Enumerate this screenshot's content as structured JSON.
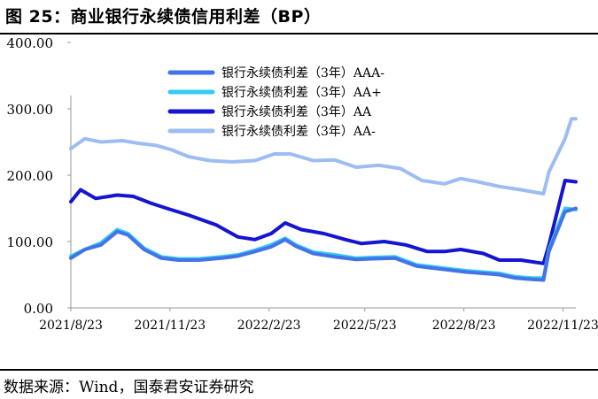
{
  "figure": {
    "title": "图 25：商业银行永续债信用利差（BP）",
    "source": "数据来源：Wind，国泰君安证券研究"
  },
  "chart_data": {
    "type": "line",
    "title": "商业银行永续债信用利差（BP）",
    "xlabel": "",
    "ylabel": "",
    "ylim": [
      0,
      400
    ],
    "yticks": [
      "0.00",
      "100.00",
      "200.00",
      "300.00",
      "400.00"
    ],
    "xticks": [
      "2021/8/23",
      "2021/11/23",
      "2022/2/23",
      "2022/5/23",
      "2022/8/23",
      "2022/11/23"
    ],
    "grid": false,
    "legend_position": "top-center",
    "series": [
      {
        "name": "银行永续债利差（3年）AAA-",
        "color": "#4472e8",
        "points": [
          [
            "2021/8/23",
            75
          ],
          [
            "2021/9/5",
            88
          ],
          [
            "2021/9/20",
            95
          ],
          [
            "2021/10/5",
            115
          ],
          [
            "2021/10/15",
            110
          ],
          [
            "2021/10/30",
            88
          ],
          [
            "2021/11/15",
            75
          ],
          [
            "2021/12/1",
            72
          ],
          [
            "2021/12/20",
            72
          ],
          [
            "2022/1/10",
            75
          ],
          [
            "2022/1/25",
            78
          ],
          [
            "2022/2/10",
            85
          ],
          [
            "2022/2/25",
            92
          ],
          [
            "2022/3/10",
            103
          ],
          [
            "2022/3/20",
            93
          ],
          [
            "2022/4/5",
            82
          ],
          [
            "2022/4/25",
            77
          ],
          [
            "2022/5/15",
            73
          ],
          [
            "2022/5/30",
            74
          ],
          [
            "2022/6/20",
            75
          ],
          [
            "2022/7/10",
            63
          ],
          [
            "2022/7/25",
            60
          ],
          [
            "2022/8/10",
            57
          ],
          [
            "2022/8/25",
            54
          ],
          [
            "2022/9/10",
            52
          ],
          [
            "2022/9/25",
            50
          ],
          [
            "2022/10/10",
            45
          ],
          [
            "2022/10/25",
            43
          ],
          [
            "2022/11/5",
            42
          ],
          [
            "2022/11/10",
            85
          ],
          [
            "2022/11/25",
            145
          ],
          [
            "2022/12/5",
            150
          ]
        ]
      },
      {
        "name": "银行永续债利差（3年）AA+",
        "color": "#33ccf2",
        "points": [
          [
            "2021/8/23",
            78
          ],
          [
            "2021/9/5",
            88
          ],
          [
            "2021/9/20",
            98
          ],
          [
            "2021/10/5",
            118
          ],
          [
            "2021/10/15",
            112
          ],
          [
            "2021/10/30",
            90
          ],
          [
            "2021/11/15",
            77
          ],
          [
            "2021/12/1",
            74
          ],
          [
            "2021/12/20",
            74
          ],
          [
            "2022/1/10",
            77
          ],
          [
            "2022/1/25",
            80
          ],
          [
            "2022/2/10",
            87
          ],
          [
            "2022/2/25",
            95
          ],
          [
            "2022/3/10",
            105
          ],
          [
            "2022/3/20",
            95
          ],
          [
            "2022/4/5",
            84
          ],
          [
            "2022/4/25",
            80
          ],
          [
            "2022/5/15",
            75
          ],
          [
            "2022/5/30",
            76
          ],
          [
            "2022/6/20",
            77
          ],
          [
            "2022/7/10",
            65
          ],
          [
            "2022/7/25",
            62
          ],
          [
            "2022/8/10",
            59
          ],
          [
            "2022/8/25",
            56
          ],
          [
            "2022/9/10",
            54
          ],
          [
            "2022/9/25",
            52
          ],
          [
            "2022/10/10",
            47
          ],
          [
            "2022/10/25",
            45
          ],
          [
            "2022/11/5",
            45
          ],
          [
            "2022/11/10",
            88
          ],
          [
            "2022/11/25",
            150
          ],
          [
            "2022/12/5",
            148
          ]
        ]
      },
      {
        "name": "银行永续债利差（3年）AA",
        "color": "#1414d2",
        "points": [
          [
            "2021/8/23",
            160
          ],
          [
            "2021/9/1",
            178
          ],
          [
            "2021/9/15",
            165
          ],
          [
            "2021/10/5",
            170
          ],
          [
            "2021/10/20",
            168
          ],
          [
            "2021/11/5",
            158
          ],
          [
            "2021/11/20",
            150
          ],
          [
            "2021/12/10",
            140
          ],
          [
            "2022/1/5",
            125
          ],
          [
            "2022/1/25",
            107
          ],
          [
            "2022/2/10",
            103
          ],
          [
            "2022/2/25",
            112
          ],
          [
            "2022/3/10",
            128
          ],
          [
            "2022/3/25",
            118
          ],
          [
            "2022/4/15",
            112
          ],
          [
            "2022/5/5",
            103
          ],
          [
            "2022/5/20",
            97
          ],
          [
            "2022/6/10",
            100
          ],
          [
            "2022/6/30",
            95
          ],
          [
            "2022/7/20",
            85
          ],
          [
            "2022/8/5",
            85
          ],
          [
            "2022/8/20",
            88
          ],
          [
            "2022/9/10",
            82
          ],
          [
            "2022/9/25",
            72
          ],
          [
            "2022/10/15",
            72
          ],
          [
            "2022/11/5",
            67
          ],
          [
            "2022/11/10",
            95
          ],
          [
            "2022/11/25",
            192
          ],
          [
            "2022/12/5",
            190
          ]
        ]
      },
      {
        "name": "银行永续债利差（3年）AA-",
        "color": "#9dbdf2",
        "points": [
          [
            "2021/8/23",
            240
          ],
          [
            "2021/9/5",
            255
          ],
          [
            "2021/9/20",
            250
          ],
          [
            "2021/10/10",
            252
          ],
          [
            "2021/10/25",
            248
          ],
          [
            "2021/11/10",
            245
          ],
          [
            "2021/11/25",
            238
          ],
          [
            "2021/12/10",
            228
          ],
          [
            "2021/12/30",
            222
          ],
          [
            "2022/1/20",
            220
          ],
          [
            "2022/2/10",
            222
          ],
          [
            "2022/2/28",
            232
          ],
          [
            "2022/3/15",
            232
          ],
          [
            "2022/4/5",
            222
          ],
          [
            "2022/4/25",
            223
          ],
          [
            "2022/5/15",
            212
          ],
          [
            "2022/6/5",
            215
          ],
          [
            "2022/6/25",
            210
          ],
          [
            "2022/7/15",
            192
          ],
          [
            "2022/8/5",
            187
          ],
          [
            "2022/8/20",
            195
          ],
          [
            "2022/9/5",
            190
          ],
          [
            "2022/9/25",
            183
          ],
          [
            "2022/10/15",
            178
          ],
          [
            "2022/11/5",
            172
          ],
          [
            "2022/11/10",
            205
          ],
          [
            "2022/11/25",
            255
          ],
          [
            "2022/12/1",
            285
          ],
          [
            "2022/12/5",
            285
          ]
        ]
      }
    ]
  }
}
